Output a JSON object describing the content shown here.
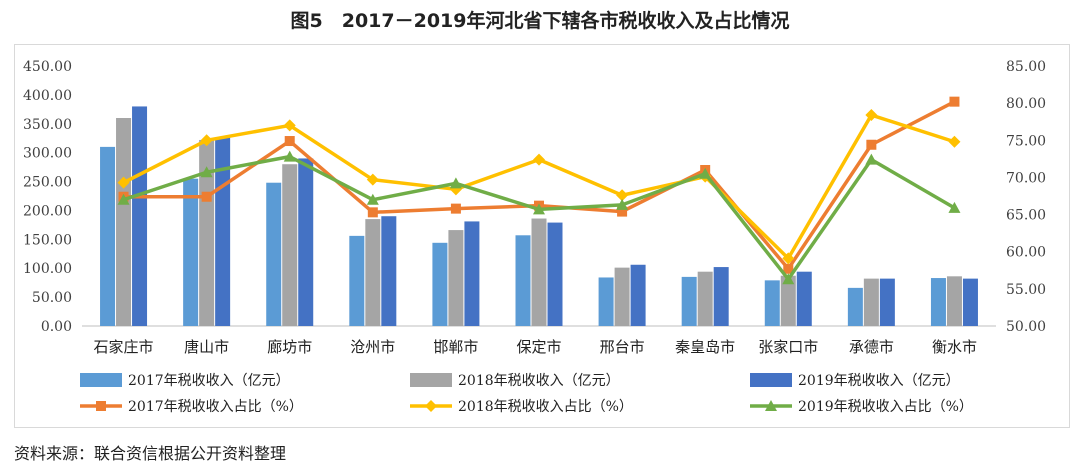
{
  "page": {
    "title": "图5　2017－2019年河北省下辖各市税收收入及占比情况",
    "source": "资料来源：联合资信根据公开资料整理"
  },
  "chart_data": {
    "type": "bar",
    "categories": [
      "石家庄市",
      "唐山市",
      "廊坊市",
      "沧州市",
      "邯郸市",
      "保定市",
      "邢台市",
      "秦皇岛市",
      "张家口市",
      "承德市",
      "衡水市"
    ],
    "y_left": {
      "min": 0,
      "max": 450,
      "step": 50,
      "ticks": [
        "0.00",
        "50.00",
        "100.00",
        "150.00",
        "200.00",
        "250.00",
        "300.00",
        "350.00",
        "400.00",
        "450.00"
      ]
    },
    "y_right": {
      "min": 50,
      "max": 85,
      "step": 5,
      "ticks": [
        "50.00",
        "55.00",
        "60.00",
        "65.00",
        "70.00",
        "75.00",
        "80.00",
        "85.00"
      ]
    },
    "series": [
      {
        "name": "2017年税收收入（亿元）",
        "type": "bar",
        "axis": "left",
        "color": "#5b9bd5",
        "values": [
          310,
          255,
          248,
          156,
          144,
          157,
          84,
          85,
          79,
          66,
          83
        ]
      },
      {
        "name": "2018年税收收入（亿元）",
        "type": "bar",
        "axis": "left",
        "color": "#a5a5a5",
        "values": [
          360,
          322,
          280,
          185,
          166,
          186,
          101,
          94,
          87,
          82,
          86
        ]
      },
      {
        "name": "2019年税收收入（亿元）",
        "type": "bar",
        "axis": "left",
        "color": "#4472c4",
        "values": [
          380,
          327,
          290,
          190,
          181,
          179,
          106,
          102,
          94,
          82,
          82
        ]
      },
      {
        "name": "2017年税收收入占比（%）",
        "type": "line",
        "axis": "right",
        "color": "#ed7d31",
        "marker": "square",
        "values": [
          67.4,
          67.4,
          74.9,
          65.3,
          65.8,
          66.2,
          65.4,
          71.0,
          57.7,
          74.4,
          80.2
        ]
      },
      {
        "name": "2018年税收收入占比（%）",
        "type": "line",
        "axis": "right",
        "color": "#ffc000",
        "marker": "diamond",
        "values": [
          69.3,
          75.0,
          77.0,
          69.7,
          68.4,
          72.4,
          67.6,
          70.1,
          59.1,
          78.4,
          74.8
        ]
      },
      {
        "name": "2019年税收收入占比（%）",
        "type": "line",
        "axis": "right",
        "color": "#70ad47",
        "marker": "triangle",
        "values": [
          67.0,
          70.7,
          72.8,
          67.0,
          69.2,
          65.7,
          66.3,
          70.5,
          56.3,
          72.4,
          65.9
        ]
      }
    ],
    "grid": false,
    "legend": "bottom"
  }
}
